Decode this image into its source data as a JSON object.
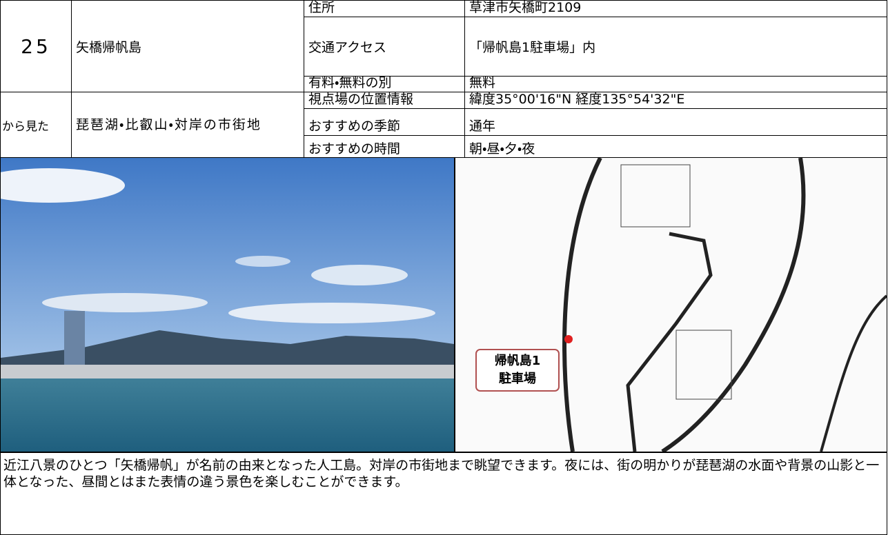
{
  "header": {
    "number": "25",
    "name": "矢橋帰帆島",
    "viewpoint_prefix": "から見た",
    "view_target": "琵琶湖・比叡山・対岸の市街地"
  },
  "info": {
    "rows": [
      [
        "住所",
        "草津市矢橋町2109"
      ],
      [
        "交通アクセス",
        "「帰帆島1駐車場」内"
      ],
      [
        "有料・無料の別",
        "無料"
      ],
      [
        "視点場の位置情報",
        "緯度35°00'16\"N 経度135°54'32\"E"
      ],
      [
        "おすすめの季節",
        "通年"
      ],
      [
        "おすすめの時間",
        "朝・昼・夕・夜"
      ]
    ]
  },
  "map": {
    "label_lines": [
      "帰帆島1",
      "駐車場"
    ]
  },
  "description": "近江八景のひとつ「矢橋帰帆」が名前の由来となった人工島。対岸の市街地まで眺望できます。夜には、街の明かりが琵琶湖の水面や背景の山影と一体となった、昼間とはまた表情の違う景色を楽しむことができます。"
}
